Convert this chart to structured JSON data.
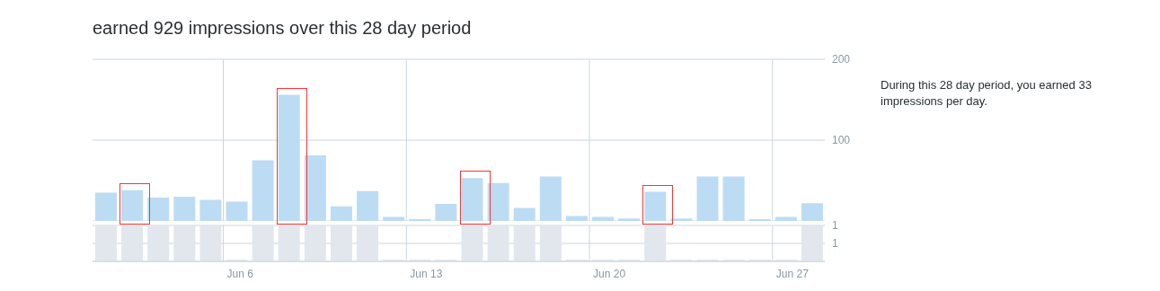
{
  "chart_data": [
    {
      "type": "bar",
      "title": "earned 929 impressions over this 28 day period",
      "annotations": [
        "During this 28 day period, you earned 33 impressions per day."
      ],
      "categories": [
        null,
        null,
        null,
        null,
        null,
        null,
        null,
        null,
        null,
        null,
        null,
        null,
        null,
        null,
        null,
        null,
        null,
        null,
        null,
        null,
        null,
        null,
        null,
        null,
        null,
        null,
        null,
        null
      ],
      "values": [
        35,
        38,
        29,
        30,
        26,
        24,
        75,
        156,
        81,
        18,
        37,
        5,
        1,
        21,
        53,
        47,
        16,
        55,
        6,
        5,
        3,
        36,
        3,
        55,
        55,
        1,
        5,
        22
      ],
      "color": "#bcdcf4",
      "ylim": [
        0,
        200
      ],
      "yticks": [
        100,
        200
      ],
      "grid": true,
      "tick_labels": "y"
    },
    {
      "type": "bar",
      "categories": [
        null,
        null,
        null,
        null,
        null,
        "Jun 6",
        null,
        null,
        null,
        null,
        null,
        null,
        "Jun 13",
        null,
        null,
        null,
        null,
        null,
        null,
        "Jun 20",
        null,
        null,
        null,
        null,
        null,
        null,
        "Jun 27",
        null
      ],
      "values": [
        1,
        1,
        1,
        1,
        1,
        0,
        1,
        1,
        1,
        1,
        1,
        0,
        0,
        0,
        1,
        1,
        1,
        1,
        0,
        0,
        0,
        1,
        0,
        0,
        0,
        0,
        0,
        1
      ],
      "color": "#e1e7ed",
      "ylim": [
        0,
        1
      ],
      "yticks": [
        {
          "value": 0.5,
          "label": "1"
        },
        1
      ],
      "grid": true
    }
  ]
}
